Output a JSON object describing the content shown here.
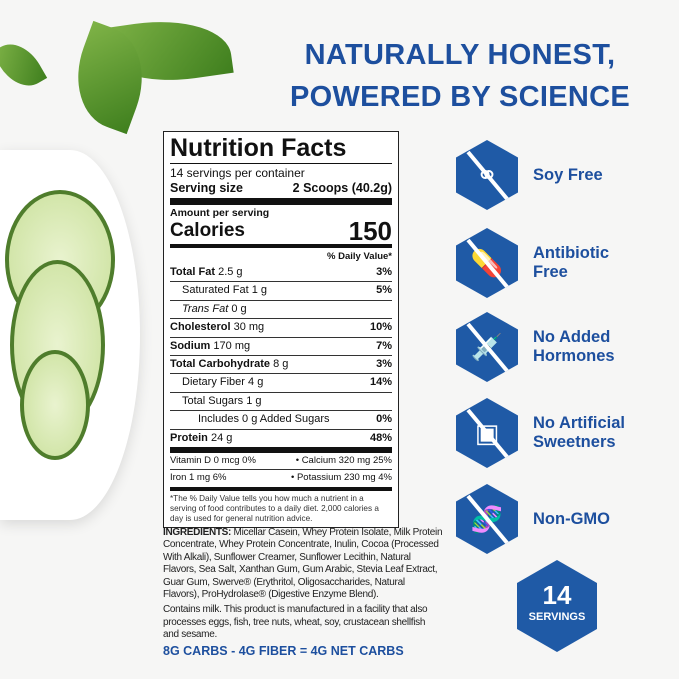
{
  "headline": [
    "NATURALLY HONEST,",
    "POWERED BY SCIENCE"
  ],
  "nutrition": {
    "title": "Nutrition Facts",
    "servings": "14 servings per container",
    "serving_size_label": "Serving size",
    "serving_size_value": "2 Scoops (40.2g)",
    "amount_per_serving": "Amount per serving",
    "calories_label": "Calories",
    "calories_value": "150",
    "dv_header": "% Daily Value*",
    "rows": [
      {
        "label": "Total Fat",
        "amount": "2.5 g",
        "dv": "3%",
        "bold": true,
        "indent": 0
      },
      {
        "label": "Saturated Fat",
        "amount": "1 g",
        "dv": "5%",
        "bold": false,
        "indent": 1
      },
      {
        "label": "Trans Fat",
        "amount": "0 g",
        "dv": "",
        "bold": false,
        "indent": 1,
        "italic": true
      },
      {
        "label": "Cholesterol",
        "amount": "30 mg",
        "dv": "10%",
        "bold": true,
        "indent": 0
      },
      {
        "label": "Sodium",
        "amount": "170 mg",
        "dv": "7%",
        "bold": true,
        "indent": 0
      },
      {
        "label": "Total Carbohydrate",
        "amount": "8 g",
        "dv": "3%",
        "bold": true,
        "indent": 0
      },
      {
        "label": "Dietary Fiber",
        "amount": "4 g",
        "dv": "14%",
        "bold": false,
        "indent": 1
      },
      {
        "label": "Total Sugars",
        "amount": "1 g",
        "dv": "",
        "bold": false,
        "indent": 1
      },
      {
        "label": "Includes 0 g Added Sugars",
        "amount": "",
        "dv": "0%",
        "bold": false,
        "indent": 2
      },
      {
        "label": "Protein",
        "amount": "24 g",
        "dv": "48%",
        "bold": true,
        "indent": 0
      }
    ],
    "vitamins": [
      {
        "left": "Vitamin D 0 mcg 0%",
        "right": "•  Calcium 320 mg 25%"
      },
      {
        "left": "Iron 1 mg 6%",
        "right": "•  Potassium 230 mg 4%"
      }
    ],
    "footnote": "*The % Daily Value tells you how much a nutrient in a serving of food contributes to a daily diet. 2,000 calories a day is used for general nutrition advice."
  },
  "ingredients_label": "INGREDIENTS:",
  "ingredients": " Micellar Casein, Whey Protein Isolate, Milk Protein Concentrate, Whey Protein Concentrate, Inulin, Cocoa (Processed With Alkali), Sunflower Creamer, Sunflower Lecithin, Natural Flavors, Sea Salt, Xanthan Gum, Gum Arabic, Stevia Leaf Extract, Guar Gum, Swerve® (Erythritol, Oligosaccharides, Natural Flavors), ProHydrolase® (Digestive Enzyme Blend).",
  "allergen": "Contains milk. This product is manufactured in a facility that also processes eggs, fish, tree nuts, wheat, soy, crustacean shellfish and sesame.",
  "net_carbs": "8G CARBS - 4G FIBER = 4G NET CARBS",
  "claims": [
    {
      "icon": "soy-free-icon",
      "lines": [
        "Soy Free"
      ]
    },
    {
      "icon": "antibiotic-free-icon",
      "lines": [
        "Antibiotic",
        "Free"
      ]
    },
    {
      "icon": "no-hormones-icon",
      "lines": [
        "No Added",
        "Hormones"
      ]
    },
    {
      "icon": "no-sweeteners-icon",
      "lines": [
        "No Artificial",
        "Sweetners"
      ]
    },
    {
      "icon": "non-gmo-icon",
      "lines": [
        "Non-GMO"
      ]
    }
  ],
  "badge": {
    "number": "14",
    "label": "SERVINGS"
  },
  "colors": {
    "brand_blue": "#1f5aa6",
    "headline_blue": "#1d4f9e"
  }
}
